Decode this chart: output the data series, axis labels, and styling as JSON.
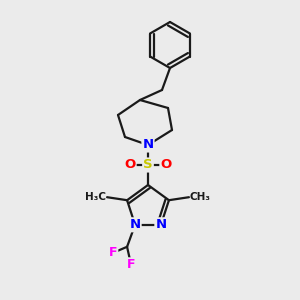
{
  "background_color": "#ebebeb",
  "bond_color": "#1a1a1a",
  "atom_colors": {
    "N": "#0000ff",
    "O": "#ff0000",
    "S": "#c8c800",
    "F": "#ff00ff",
    "C": "#1a1a1a"
  },
  "figsize": [
    3.0,
    3.0
  ],
  "dpi": 100
}
